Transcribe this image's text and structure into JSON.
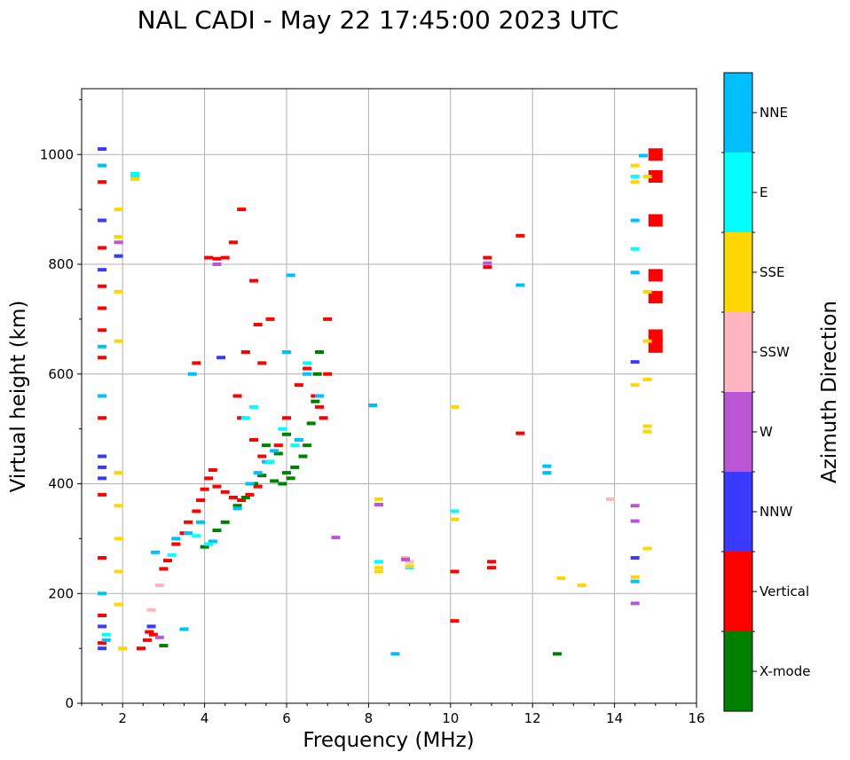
{
  "chart_data": {
    "type": "scatter",
    "title": "NAL CADI - May 22 17:45:00 2023 UTC",
    "xlabel": "Frequency (MHz)",
    "ylabel": "Virtual height (km)",
    "xlim": [
      1,
      16
    ],
    "ylim": [
      0,
      1120
    ],
    "xticks": [
      2,
      4,
      6,
      8,
      10,
      12,
      14,
      16
    ],
    "yticks": [
      0,
      200,
      400,
      600,
      800,
      1000
    ],
    "grid": true,
    "colorbar": {
      "title": "Azimuth Direction",
      "categories": [
        {
          "name": "NNE",
          "color": "#00bfff"
        },
        {
          "name": "E",
          "color": "#00ffff"
        },
        {
          "name": "SSE",
          "color": "#ffd700"
        },
        {
          "name": "SSW",
          "color": "#ffb6c1"
        },
        {
          "name": "W",
          "color": "#ba55d3"
        },
        {
          "name": "NNW",
          "color": "#3a3aff"
        },
        {
          "name": "Vertical",
          "color": "#ff0000"
        },
        {
          "name": "X-mode",
          "color": "#008000"
        }
      ]
    },
    "series": [
      {
        "name": "Vertical",
        "points": [
          [
            1.5,
            950
          ],
          [
            1.5,
            830
          ],
          [
            1.5,
            760
          ],
          [
            1.5,
            720
          ],
          [
            1.5,
            680
          ],
          [
            1.5,
            630
          ],
          [
            1.5,
            520
          ],
          [
            1.5,
            380
          ],
          [
            1.5,
            265
          ],
          [
            1.5,
            160
          ],
          [
            1.5,
            110
          ],
          [
            2.45,
            100
          ],
          [
            2.6,
            115
          ],
          [
            2.65,
            130
          ],
          [
            2.75,
            125
          ],
          [
            3.0,
            245
          ],
          [
            3.1,
            260
          ],
          [
            3.3,
            290
          ],
          [
            3.5,
            310
          ],
          [
            3.6,
            330
          ],
          [
            3.8,
            350
          ],
          [
            3.9,
            370
          ],
          [
            4.0,
            390
          ],
          [
            4.1,
            410
          ],
          [
            4.2,
            425
          ],
          [
            4.3,
            395
          ],
          [
            4.5,
            385
          ],
          [
            4.7,
            375
          ],
          [
            4.9,
            370
          ],
          [
            5.1,
            380
          ],
          [
            5.3,
            395
          ],
          [
            4.1,
            812
          ],
          [
            4.3,
            810
          ],
          [
            4.5,
            812
          ],
          [
            4.7,
            840
          ],
          [
            4.9,
            900
          ],
          [
            5.2,
            770
          ],
          [
            5.3,
            690
          ],
          [
            5.4,
            620
          ],
          [
            5.0,
            640
          ],
          [
            4.8,
            560
          ],
          [
            4.9,
            520
          ],
          [
            5.2,
            480
          ],
          [
            5.4,
            450
          ],
          [
            3.8,
            620
          ],
          [
            5.6,
            700
          ],
          [
            6.7,
            560
          ],
          [
            6.8,
            540
          ],
          [
            6.9,
            520
          ],
          [
            7.0,
            600
          ],
          [
            7.0,
            700
          ],
          [
            6.5,
            610
          ],
          [
            6.3,
            580
          ],
          [
            6.0,
            520
          ],
          [
            5.8,
            470
          ],
          [
            10.1,
            240
          ],
          [
            10.1,
            150
          ],
          [
            10.9,
            812
          ],
          [
            10.9,
            795
          ],
          [
            11.0,
            258
          ],
          [
            11.0,
            247
          ],
          [
            11.7,
            492
          ],
          [
            11.7,
            852
          ],
          [
            15.0,
            1000
          ],
          [
            15.0,
            960
          ],
          [
            15.0,
            880
          ],
          [
            15.0,
            780
          ],
          [
            15.0,
            740
          ],
          [
            15.0,
            670
          ],
          [
            15.0,
            650
          ]
        ]
      },
      {
        "name": "X-mode",
        "points": [
          [
            3.0,
            105
          ],
          [
            4.0,
            285
          ],
          [
            4.3,
            315
          ],
          [
            4.5,
            330
          ],
          [
            4.8,
            360
          ],
          [
            5.0,
            375
          ],
          [
            5.2,
            400
          ],
          [
            5.4,
            415
          ],
          [
            5.6,
            440
          ],
          [
            5.8,
            455
          ],
          [
            6.0,
            420
          ],
          [
            6.2,
            430
          ],
          [
            6.4,
            450
          ],
          [
            6.5,
            470
          ],
          [
            6.6,
            510
          ],
          [
            6.7,
            550
          ],
          [
            6.75,
            600
          ],
          [
            6.8,
            640
          ],
          [
            5.7,
            405
          ],
          [
            5.9,
            400
          ],
          [
            6.1,
            410
          ],
          [
            5.5,
            470
          ],
          [
            6.0,
            490
          ],
          [
            12.6,
            90
          ]
        ]
      },
      {
        "name": "NNE",
        "points": [
          [
            1.5,
            980
          ],
          [
            1.5,
            650
          ],
          [
            1.5,
            560
          ],
          [
            1.5,
            200
          ],
          [
            1.6,
            115
          ],
          [
            2.8,
            275
          ],
          [
            3.5,
            135
          ],
          [
            3.3,
            300
          ],
          [
            3.6,
            310
          ],
          [
            3.9,
            330
          ],
          [
            4.2,
            295
          ],
          [
            4.8,
            355
          ],
          [
            5.1,
            400
          ],
          [
            5.3,
            420
          ],
          [
            5.5,
            440
          ],
          [
            5.7,
            460
          ],
          [
            6.0,
            640
          ],
          [
            6.1,
            780
          ],
          [
            6.3,
            480
          ],
          [
            6.5,
            600
          ],
          [
            6.8,
            560
          ],
          [
            3.7,
            600
          ],
          [
            8.1,
            543
          ],
          [
            8.65,
            90
          ],
          [
            11.7,
            762
          ],
          [
            12.35,
            432
          ],
          [
            12.35,
            420
          ],
          [
            14.5,
            880
          ],
          [
            14.5,
            785
          ],
          [
            14.5,
            222
          ],
          [
            14.7,
            998
          ]
        ]
      },
      {
        "name": "E",
        "points": [
          [
            2.3,
            965
          ],
          [
            2.3,
            960
          ],
          [
            1.6,
            125
          ],
          [
            3.2,
            270
          ],
          [
            3.8,
            305
          ],
          [
            4.1,
            290
          ],
          [
            5.0,
            520
          ],
          [
            5.2,
            540
          ],
          [
            5.6,
            440
          ],
          [
            5.9,
            500
          ],
          [
            6.2,
            470
          ],
          [
            6.5,
            620
          ],
          [
            8.25,
            258
          ],
          [
            9.0,
            247
          ],
          [
            10.1,
            350
          ],
          [
            14.5,
            828
          ],
          [
            14.5,
            960
          ]
        ]
      },
      {
        "name": "SSE",
        "points": [
          [
            2.3,
            955
          ],
          [
            1.9,
            900
          ],
          [
            1.9,
            850
          ],
          [
            1.9,
            750
          ],
          [
            1.9,
            660
          ],
          [
            1.9,
            420
          ],
          [
            1.9,
            360
          ],
          [
            1.9,
            300
          ],
          [
            1.9,
            240
          ],
          [
            1.9,
            180
          ],
          [
            2.0,
            100
          ],
          [
            8.25,
            372
          ],
          [
            8.25,
            247
          ],
          [
            8.25,
            240
          ],
          [
            9.0,
            250
          ],
          [
            10.1,
            540
          ],
          [
            10.1,
            335
          ],
          [
            12.7,
            228
          ],
          [
            13.2,
            215
          ],
          [
            14.5,
            980
          ],
          [
            14.5,
            950
          ],
          [
            14.5,
            580
          ],
          [
            14.5,
            230
          ],
          [
            14.8,
            960
          ],
          [
            14.8,
            750
          ],
          [
            14.8,
            660
          ],
          [
            14.8,
            590
          ],
          [
            14.8,
            505
          ],
          [
            14.8,
            495
          ],
          [
            14.8,
            282
          ]
        ]
      },
      {
        "name": "SSW",
        "points": [
          [
            8.9,
            265
          ],
          [
            9.0,
            258
          ],
          [
            2.9,
            215
          ],
          [
            2.7,
            170
          ],
          [
            13.9,
            372
          ]
        ]
      },
      {
        "name": "W",
        "points": [
          [
            1.9,
            840
          ],
          [
            2.9,
            120
          ],
          [
            10.9,
            802
          ],
          [
            8.25,
            362
          ],
          [
            8.9,
            262
          ],
          [
            14.5,
            360
          ],
          [
            14.5,
            332
          ],
          [
            14.5,
            182
          ],
          [
            4.3,
            800
          ],
          [
            7.2,
            302
          ]
        ]
      },
      {
        "name": "NNW",
        "points": [
          [
            1.5,
            1010
          ],
          [
            1.5,
            880
          ],
          [
            1.5,
            790
          ],
          [
            1.5,
            450
          ],
          [
            1.5,
            430
          ],
          [
            1.5,
            410
          ],
          [
            1.5,
            140
          ],
          [
            1.5,
            100
          ],
          [
            1.9,
            815
          ],
          [
            2.7,
            140
          ],
          [
            4.4,
            630
          ],
          [
            14.5,
            622
          ],
          [
            14.5,
            265
          ]
        ]
      }
    ]
  }
}
